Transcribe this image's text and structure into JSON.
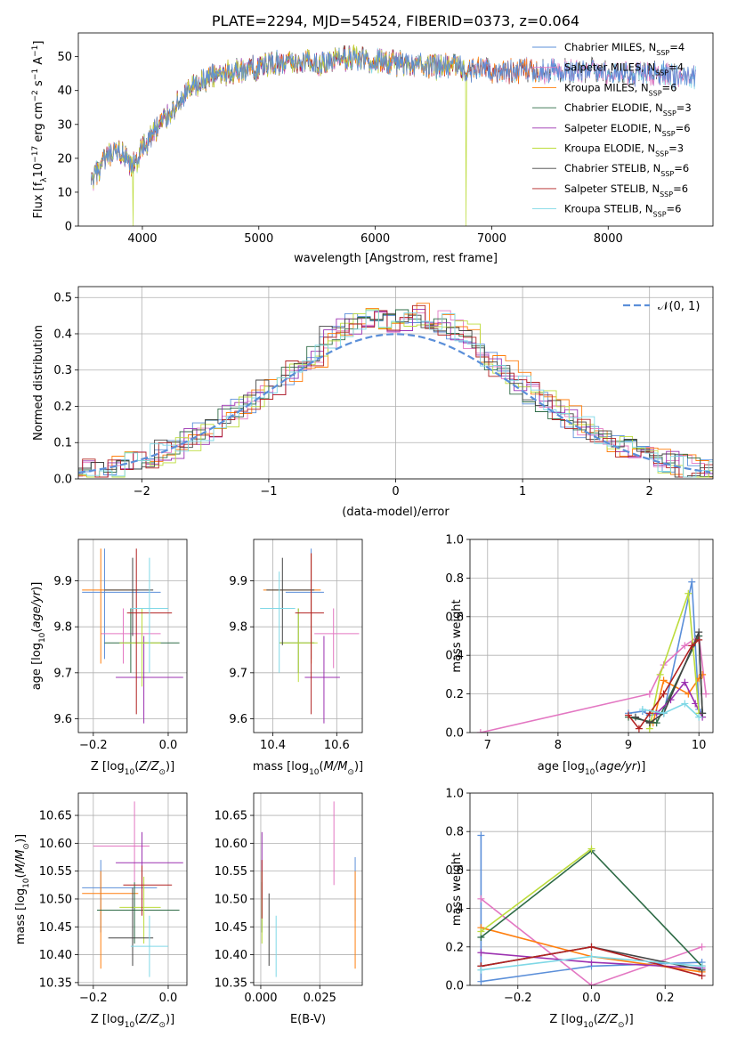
{
  "colors": {
    "chabrier_miles": "#5b8fd9",
    "salpeter_miles": "#e377c2",
    "kroupa_miles": "#ff7f0e",
    "chabrier_elodie": "#2e6b46",
    "salpeter_elodie": "#9b30b0",
    "kroupa_elodie": "#bcdc3b",
    "chabrier_stelib": "#444444",
    "salpeter_stelib": "#b22222",
    "kroupa_stelib": "#7fd8e6",
    "gauss": "#5b8fd9"
  },
  "chart_data": [
    {
      "id": "spectrum",
      "type": "line",
      "title": "PLATE=2294, MJD=54524, FIBERID=0373, z=0.064",
      "xlabel": "wavelength [Angstrom, rest frame]",
      "ylabel": "Flux [f",
      "ylabel_main": "Flux [f",
      "ylabel_sub": "λ",
      "ylabel_rest": "10",
      "ylabel_exp1": "−17",
      "ylabel_mid": " erg cm",
      "ylabel_exp2": "−2",
      "ylabel_s": " s",
      "ylabel_exp3": "−1",
      "ylabel_A": " A",
      "ylabel_exp4": "−1",
      "ylabel_end": "]",
      "xlim": [
        3450,
        8900
      ],
      "ylim": [
        0,
        57
      ],
      "xticks": [
        "4000",
        "5000",
        "6000",
        "7000",
        "8000"
      ],
      "xtick_values": [
        4000,
        5000,
        6000,
        7000,
        8000
      ],
      "yticks": [
        "0",
        "10",
        "20",
        "30",
        "40",
        "50"
      ],
      "ytick_values": [
        0,
        10,
        20,
        30,
        40,
        50
      ],
      "anchors": {
        "x": [
          3560,
          3600,
          3650,
          3700,
          3750,
          3800,
          3850,
          3900,
          3950,
          4000,
          4050,
          4100,
          4150,
          4200,
          4300,
          4400,
          4500,
          4600,
          4700,
          4800,
          4900,
          5000,
          5100,
          5200,
          5300,
          5400,
          5500,
          5600,
          5700,
          5800,
          5900,
          6000,
          6100,
          6200,
          6300,
          6400,
          6500,
          6600,
          6700,
          6800,
          6900,
          7000,
          7100,
          7200,
          7300,
          7400,
          7500,
          7600,
          7700,
          7800,
          7900,
          8000,
          8100,
          8200,
          8300,
          8400,
          8500,
          8600
        ],
        "y": [
          12,
          15,
          18,
          20,
          21,
          22,
          20,
          17,
          19,
          23,
          25,
          28,
          30,
          32,
          36,
          40,
          42,
          44,
          45,
          46,
          46,
          47,
          48,
          48,
          48,
          49,
          48,
          48,
          49,
          50,
          49,
          49,
          48,
          48,
          48,
          48,
          47,
          47,
          47,
          46,
          46,
          46,
          46,
          46,
          46,
          46,
          46,
          46,
          46,
          46,
          46,
          45,
          45,
          45,
          45,
          45,
          45,
          44
        ]
      },
      "dropouts": [
        {
          "series": 5,
          "x": 3920
        },
        {
          "series": 5,
          "x": 6780
        },
        {
          "series": 2,
          "x": 7410
        }
      ],
      "series": [
        {
          "name": "Chabrier MILES, N",
          "sub": "SSP",
          "num": "=4",
          "end": 8750
        },
        {
          "name": "Salpeter MILES, N",
          "sub": "SSP",
          "num": "=4",
          "end": 8750
        },
        {
          "name": "Kroupa MILES, N",
          "sub": "SSP",
          "num": "=6",
          "end": 7400
        },
        {
          "name": "Chabrier ELODIE, N",
          "sub": "SSP",
          "num": "=3",
          "end": 6800
        },
        {
          "name": "Salpeter ELODIE, N",
          "sub": "SSP",
          "num": "=6",
          "end": 6800
        },
        {
          "name": "Kroupa ELODIE, N",
          "sub": "SSP",
          "num": "=3",
          "end": 6800
        },
        {
          "name": "Chabrier STELIB, N",
          "sub": "SSP",
          "num": "=6",
          "end": 8750
        },
        {
          "name": "Salpeter STELIB, N",
          "sub": "SSP",
          "num": "=6",
          "end": 7400
        },
        {
          "name": "Kroupa STELIB, N",
          "sub": "SSP",
          "num": "=6",
          "end": 8750
        }
      ]
    },
    {
      "id": "residuals",
      "type": "histogram",
      "xlabel": "(data-model)/error",
      "ylabel": "Normed distribution",
      "xlim": [
        -2.5,
        2.5
      ],
      "ylim": [
        0,
        0.53
      ],
      "xticks": [
        "−2",
        "−1",
        "0",
        "1",
        "2"
      ],
      "xtick_values": [
        -2,
        -1,
        0,
        1,
        2
      ],
      "yticks": [
        "0.0",
        "0.1",
        "0.2",
        "0.3",
        "0.4",
        "0.5"
      ],
      "ytick_values": [
        0,
        0.1,
        0.2,
        0.3,
        0.4,
        0.5
      ],
      "bin_width": 0.1,
      "legend_label": "𝒩(0, 1)",
      "legend_position": "upper right",
      "gaussian": {
        "mean": 0,
        "sigma": 1
      }
    },
    {
      "id": "age-vs-Z",
      "type": "errorbar",
      "xlabel": "Z [log",
      "ylabel": "age  [log",
      "xlim": [
        -0.24,
        0.05
      ],
      "ylim": [
        9.57,
        9.99
      ],
      "xticks": [
        "−0.2",
        "0.0"
      ],
      "xtick_values": [
        -0.2,
        0
      ],
      "yticks": [
        "9.6",
        "9.7",
        "9.8",
        "9.9"
      ],
      "ytick_values": [
        9.6,
        9.7,
        9.8,
        9.9
      ],
      "points": [
        {
          "s": 0,
          "x": -0.17,
          "y": 9.875,
          "xlo": -0.23,
          "xhi": -0.02,
          "ylo": 9.73,
          "yhi": 9.97
        },
        {
          "s": 1,
          "x": -0.12,
          "y": 9.785,
          "xlo": -0.18,
          "xhi": -0.02,
          "ylo": 9.72,
          "yhi": 9.84
        },
        {
          "s": 2,
          "x": -0.18,
          "y": 9.88,
          "xlo": -0.23,
          "xhi": -0.08,
          "ylo": 9.72,
          "yhi": 9.97
        },
        {
          "s": 3,
          "x": -0.1,
          "y": 9.765,
          "xlo": -0.17,
          "xhi": 0.03,
          "ylo": 9.7,
          "yhi": 9.84
        },
        {
          "s": 4,
          "x": -0.065,
          "y": 9.69,
          "xlo": -0.14,
          "xhi": 0.04,
          "ylo": 9.59,
          "yhi": 9.78
        },
        {
          "s": 5,
          "x": -0.07,
          "y": 9.765,
          "xlo": -0.13,
          "xhi": -0.02,
          "ylo": 9.67,
          "yhi": 9.84
        },
        {
          "s": 6,
          "x": -0.095,
          "y": 9.88,
          "xlo": -0.17,
          "xhi": -0.04,
          "ylo": 9.78,
          "yhi": 9.95
        },
        {
          "s": 7,
          "x": -0.085,
          "y": 9.83,
          "xlo": -0.11,
          "xhi": 0.01,
          "ylo": 9.61,
          "yhi": 9.97
        },
        {
          "s": 8,
          "x": -0.05,
          "y": 9.84,
          "xlo": -0.1,
          "xhi": 0.0,
          "ylo": 9.7,
          "yhi": 9.95
        }
      ]
    },
    {
      "id": "age-vs-mass",
      "type": "errorbar",
      "xlabel": "mass [log",
      "xlim": [
        10.34,
        10.68
      ],
      "ylim": [
        9.57,
        9.99
      ],
      "xticks": [
        "10.4",
        "10.6"
      ],
      "xtick_values": [
        10.4,
        10.6
      ],
      "yticks": [
        "9.6",
        "9.7",
        "9.8",
        "9.9"
      ],
      "ytick_values": [
        9.6,
        9.7,
        9.8,
        9.9
      ],
      "points": [
        {
          "s": 0,
          "x": 10.52,
          "y": 9.875,
          "xlo": 10.44,
          "xhi": 10.56,
          "ylo": 9.73,
          "yhi": 9.97
        },
        {
          "s": 1,
          "x": 10.59,
          "y": 9.785,
          "xlo": 10.53,
          "xhi": 10.67,
          "ylo": 9.71,
          "yhi": 9.84
        },
        {
          "s": 2,
          "x": 10.52,
          "y": 9.88,
          "xlo": 10.37,
          "xhi": 10.55,
          "ylo": 9.72,
          "yhi": 9.96
        },
        {
          "s": 3,
          "x": 10.48,
          "y": 9.765,
          "xlo": 10.42,
          "xhi": 10.53,
          "ylo": 9.7,
          "yhi": 9.84
        },
        {
          "s": 4,
          "x": 10.56,
          "y": 9.69,
          "xlo": 10.5,
          "xhi": 10.61,
          "ylo": 9.59,
          "yhi": 9.78
        },
        {
          "s": 5,
          "x": 10.48,
          "y": 9.765,
          "xlo": 10.42,
          "xhi": 10.54,
          "ylo": 9.68,
          "yhi": 9.84
        },
        {
          "s": 6,
          "x": 10.43,
          "y": 9.88,
          "xlo": 10.38,
          "xhi": 10.53,
          "ylo": 9.76,
          "yhi": 9.95
        },
        {
          "s": 7,
          "x": 10.52,
          "y": 9.83,
          "xlo": 10.47,
          "xhi": 10.56,
          "ylo": 9.61,
          "yhi": 9.96
        },
        {
          "s": 8,
          "x": 10.42,
          "y": 9.84,
          "xlo": 10.36,
          "xhi": 10.47,
          "ylo": 9.7,
          "yhi": 9.92
        }
      ]
    },
    {
      "id": "mass-vs-Z",
      "type": "errorbar",
      "xlabel": "Z [log",
      "ylabel": "mass [log",
      "xlim": [
        -0.24,
        0.05
      ],
      "ylim": [
        10.345,
        10.69
      ],
      "xticks": [
        "−0.2",
        "0.0"
      ],
      "xtick_values": [
        -0.2,
        0
      ],
      "yticks": [
        "10.35",
        "10.40",
        "10.45",
        "10.50",
        "10.55",
        "10.60",
        "10.65"
      ],
      "ytick_values": [
        10.35,
        10.4,
        10.45,
        10.5,
        10.55,
        10.6,
        10.65
      ],
      "points": [
        {
          "s": 0,
          "x": -0.18,
          "y": 10.52,
          "xlo": -0.23,
          "xhi": -0.03,
          "ylo": 10.44,
          "yhi": 10.57
        },
        {
          "s": 1,
          "x": -0.09,
          "y": 10.595,
          "xlo": -0.2,
          "xhi": -0.05,
          "ylo": 10.53,
          "yhi": 10.675
        },
        {
          "s": 2,
          "x": -0.18,
          "y": 10.51,
          "xlo": -0.23,
          "xhi": -0.08,
          "ylo": 10.375,
          "yhi": 10.55
        },
        {
          "s": 3,
          "x": -0.09,
          "y": 10.48,
          "xlo": -0.19,
          "xhi": 0.03,
          "ylo": 10.42,
          "yhi": 10.53
        },
        {
          "s": 4,
          "x": -0.07,
          "y": 10.565,
          "xlo": -0.14,
          "xhi": 0.04,
          "ylo": 10.5,
          "yhi": 10.62
        },
        {
          "s": 5,
          "x": -0.065,
          "y": 10.485,
          "xlo": -0.13,
          "xhi": -0.02,
          "ylo": 10.42,
          "yhi": 10.54
        },
        {
          "s": 6,
          "x": -0.095,
          "y": 10.43,
          "xlo": -0.16,
          "xhi": -0.04,
          "ylo": 10.38,
          "yhi": 10.52
        },
        {
          "s": 7,
          "x": -0.07,
          "y": 10.525,
          "xlo": -0.12,
          "xhi": 0.01,
          "ylo": 10.47,
          "yhi": 10.56
        },
        {
          "s": 8,
          "x": -0.05,
          "y": 10.415,
          "xlo": -0.1,
          "xhi": 0.0,
          "ylo": 10.36,
          "yhi": 10.47
        }
      ]
    },
    {
      "id": "mass-vs-EBV",
      "type": "errorbar",
      "xlabel": "E(B-V)",
      "xlim": [
        -0.003,
        0.043
      ],
      "ylim": [
        10.345,
        10.69
      ],
      "xticks": [
        "0.000",
        "0.025"
      ],
      "xtick_values": [
        0,
        0.025
      ],
      "yticks": [
        "10.35",
        "10.40",
        "10.45",
        "10.50",
        "10.55",
        "10.60",
        "10.65"
      ],
      "ytick_values": [
        10.35,
        10.4,
        10.45,
        10.5,
        10.55,
        10.6,
        10.65
      ],
      "points": [
        {
          "s": 0,
          "x": 0.04,
          "y": 10.52,
          "ylo": 10.46,
          "yhi": 10.575
        },
        {
          "s": 1,
          "x": 0.031,
          "y": 10.6,
          "ylo": 10.525,
          "yhi": 10.675
        },
        {
          "s": 2,
          "x": 0.04,
          "y": 10.46,
          "ylo": 10.375,
          "yhi": 10.55
        },
        {
          "s": 3,
          "x": 0.0005,
          "y": 10.48,
          "ylo": 10.44,
          "yhi": 10.53
        },
        {
          "s": 4,
          "x": 0.0005,
          "y": 10.56,
          "ylo": 10.5,
          "yhi": 10.62
        },
        {
          "s": 5,
          "x": 0.0005,
          "y": 10.5,
          "ylo": 10.42,
          "yhi": 10.55
        },
        {
          "s": 6,
          "x": 0.0035,
          "y": 10.43,
          "ylo": 10.38,
          "yhi": 10.51
        },
        {
          "s": 7,
          "x": 0.0005,
          "y": 10.52,
          "ylo": 10.465,
          "yhi": 10.57
        },
        {
          "s": 8,
          "x": 0.0065,
          "y": 10.41,
          "ylo": 10.36,
          "yhi": 10.47
        }
      ]
    },
    {
      "id": "weight-vs-age",
      "type": "line",
      "xlabel": "age  [log",
      "ylabel": "mass weight",
      "xlim": [
        6.75,
        10.2
      ],
      "ylim": [
        0,
        1.0
      ],
      "xticks": [
        "7",
        "8",
        "9",
        "10"
      ],
      "xtick_values": [
        7,
        8,
        9,
        10
      ],
      "yticks": [
        "0.0",
        "0.2",
        "0.4",
        "0.6",
        "0.8",
        "1.0"
      ],
      "ytick_values": [
        0,
        0.2,
        0.4,
        0.6,
        0.8,
        1.0
      ],
      "series": [
        {
          "s": 0,
          "x": [
            9.0,
            9.2,
            9.3,
            9.5,
            9.9,
            10.0,
            10.05
          ],
          "y": [
            0.1,
            0.11,
            0.09,
            0.1,
            0.78,
            0.12,
            0.1
          ]
        },
        {
          "s": 1,
          "x": [
            6.9,
            9.3,
            9.5,
            9.8,
            10.0,
            10.1
          ],
          "y": [
            0.0,
            0.2,
            0.35,
            0.45,
            0.5,
            0.2
          ]
        },
        {
          "s": 2,
          "x": [
            9.35,
            9.5,
            9.85,
            10.0,
            10.05
          ],
          "y": [
            0.05,
            0.27,
            0.2,
            0.28,
            0.3
          ]
        },
        {
          "s": 3,
          "x": [
            9.0,
            9.4,
            10.0,
            10.05
          ],
          "y": [
            0.08,
            0.05,
            0.5,
            0.1
          ]
        },
        {
          "s": 4,
          "x": [
            9.4,
            9.6,
            9.8,
            9.95,
            10.05
          ],
          "y": [
            0.1,
            0.17,
            0.26,
            0.15,
            0.08
          ]
        },
        {
          "s": 5,
          "x": [
            9.3,
            9.45,
            9.85,
            10.0
          ],
          "y": [
            0.02,
            0.3,
            0.72,
            0.1
          ]
        },
        {
          "s": 6,
          "x": [
            9.1,
            9.3,
            9.5,
            10.0,
            10.05
          ],
          "y": [
            0.08,
            0.05,
            0.1,
            0.52,
            0.1
          ]
        },
        {
          "s": 7,
          "x": [
            9.0,
            9.15,
            9.3,
            9.5,
            9.9,
            10.0
          ],
          "y": [
            0.09,
            0.02,
            0.1,
            0.2,
            0.45,
            0.48
          ]
        },
        {
          "s": 8,
          "x": [
            9.2,
            9.5,
            9.8,
            10.0
          ],
          "y": [
            0.12,
            0.1,
            0.15,
            0.08
          ]
        }
      ]
    },
    {
      "id": "weight-vs-Z",
      "type": "line",
      "xlabel": "Z [log",
      "ylabel": "mass weight",
      "xlim": [
        -0.33,
        0.33
      ],
      "ylim": [
        0,
        1.0
      ],
      "xticks": [
        "−0.2",
        "0.0",
        "0.2"
      ],
      "xtick_values": [
        -0.2,
        0,
        0.2
      ],
      "yticks": [
        "0.0",
        "0.2",
        "0.4",
        "0.6",
        "0.8",
        "1.0"
      ],
      "ytick_values": [
        0,
        0.2,
        0.4,
        0.6,
        0.8,
        1.0
      ],
      "series": [
        {
          "s": 0,
          "x": [
            -0.3,
            -0.3,
            0.0,
            0.3
          ],
          "y": [
            0.78,
            0.02,
            0.1,
            0.12
          ]
        },
        {
          "s": 1,
          "x": [
            -0.3,
            0.0,
            0.3
          ],
          "y": [
            0.45,
            0.0,
            0.2
          ]
        },
        {
          "s": 2,
          "x": [
            -0.3,
            0.0,
            0.3
          ],
          "y": [
            0.3,
            0.15,
            0.07
          ]
        },
        {
          "s": 3,
          "x": [
            -0.3,
            0.0,
            0.3
          ],
          "y": [
            0.25,
            0.7,
            0.1
          ]
        },
        {
          "s": 4,
          "x": [
            -0.3,
            0.0,
            0.3
          ],
          "y": [
            0.17,
            0.12,
            0.09
          ]
        },
        {
          "s": 5,
          "x": [
            -0.3,
            0.0
          ],
          "y": [
            0.28,
            0.71
          ]
        },
        {
          "s": 6,
          "x": [
            -0.3,
            0.0,
            0.3
          ],
          "y": [
            0.1,
            0.2,
            0.08
          ]
        },
        {
          "s": 7,
          "x": [
            -0.3,
            0.0,
            0.3
          ],
          "y": [
            0.1,
            0.2,
            0.05
          ]
        },
        {
          "s": 8,
          "x": [
            -0.3,
            0.0,
            0.3
          ],
          "y": [
            0.08,
            0.15,
            0.1
          ]
        }
      ]
    }
  ]
}
